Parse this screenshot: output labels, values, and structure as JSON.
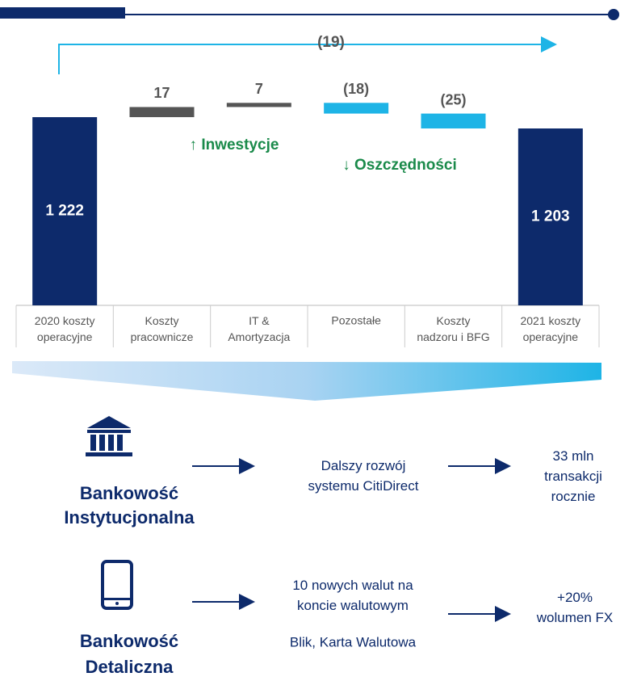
{
  "chart_data": {
    "type": "waterfall",
    "categories": [
      "2020 koszty\noperacyjne",
      "Koszty\npracownicze",
      "IT &\nAmortyzacja",
      "Pozostałe",
      "Koszty\nnadzoru i BFG",
      "2021 koszty\noperacyjne"
    ],
    "measure": [
      "total",
      "relative",
      "relative",
      "relative",
      "relative",
      "total"
    ],
    "values": [
      1222,
      17,
      7,
      -18,
      -25,
      1203
    ],
    "value_labels": [
      "1 222",
      "17",
      "7",
      "(18)",
      "(25)",
      "1 203"
    ],
    "colors": {
      "total": "#0d2a6b",
      "increase": "#555555",
      "decrease": "#1eb4e6"
    },
    "ylim": [
      906,
      1260
    ],
    "total_change": {
      "value": -19,
      "label": "(19)"
    },
    "annotations": [
      "↑ Inwestycje",
      "↓ Oszczędności"
    ]
  },
  "sections": [
    {
      "title": "Bankowość\nInstytucjonalna",
      "action": "Dalszy rozwój\nsystemu CitiDirect",
      "result": "33 mln\ntransakcji\nrocznie"
    },
    {
      "title": "Bankowość\nDetaliczna",
      "action": "10 nowych walut na\nkoncie walutowym",
      "action_note": "Blik, Karta Walutowa",
      "result": "+20%\nwolumen FX"
    }
  ]
}
